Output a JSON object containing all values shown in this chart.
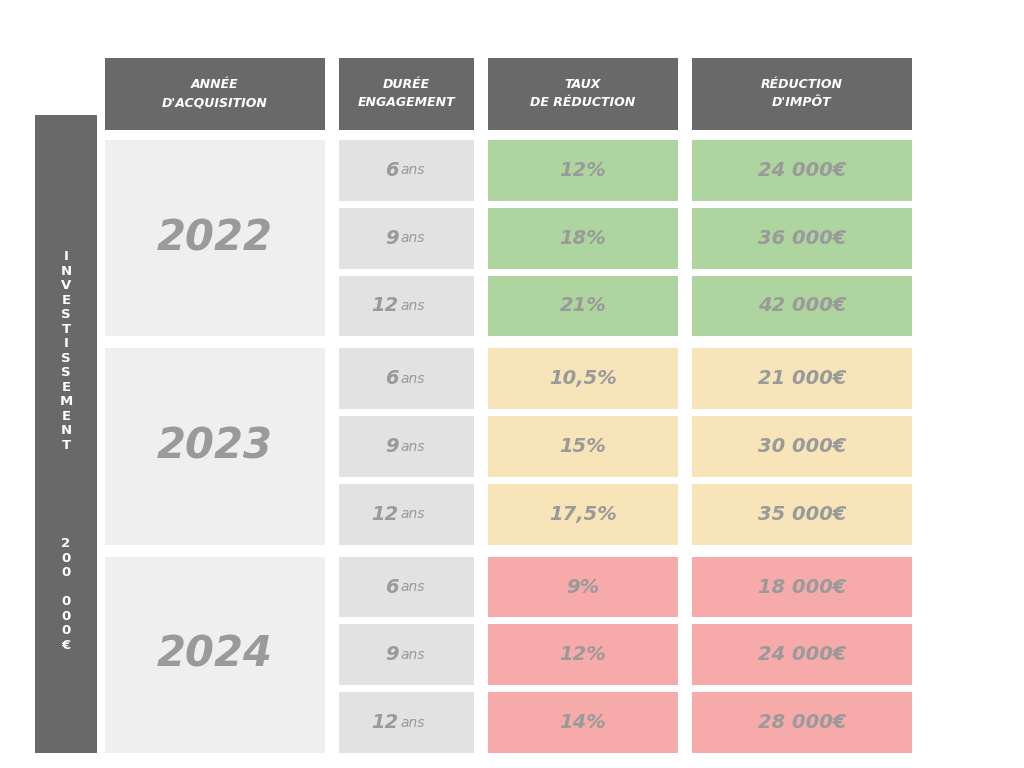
{
  "header_bg": "#696969",
  "header_text_color": "#ffffff",
  "side_bg": "#696969",
  "year_bg": "#efefef",
  "duration_bg": "#e2e2e2",
  "year_text_color": "#9a9a9a",
  "duration_text_color": "#9a9a9a",
  "headers": [
    "ANNÉE\nD'ACQUISITION",
    "DURÉE\nENGAGEMENT",
    "TAUX\nDE RÉDUCTION",
    "RÉDUCTION\nD'IMPÔT"
  ],
  "years": [
    "2022",
    "2023",
    "2024"
  ],
  "durations": [
    "6",
    "9",
    "12"
  ],
  "taux": [
    [
      "12%",
      "18%",
      "21%"
    ],
    [
      "10,5%",
      "15%",
      "17,5%"
    ],
    [
      "9%",
      "12%",
      "14%"
    ]
  ],
  "reduction": [
    [
      "24 000€",
      "36 000€",
      "42 000€"
    ],
    [
      "21 000€",
      "30 000€",
      "35 000€"
    ],
    [
      "18 000€",
      "24 000€",
      "28 000€"
    ]
  ],
  "colors": [
    {
      "taux_bg": "#aed4a0",
      "reduction_bg": "#aed4a0",
      "text": "#7a9a72"
    },
    {
      "taux_bg": "#f7e4b8",
      "reduction_bg": "#f7e4b8",
      "text": "#b09858"
    },
    {
      "taux_bg": "#f7aaaa",
      "reduction_bg": "#f7aaaa",
      "text": "#c07070"
    }
  ],
  "side_text_top": "I\nN\nV\nE\nS\nT\nI\nS\nS\nE\nM\nE\nN\nT",
  "side_text_bottom": "2\n0\n0\n \n0\n0\n0\n€",
  "fig_bg": "#ffffff"
}
